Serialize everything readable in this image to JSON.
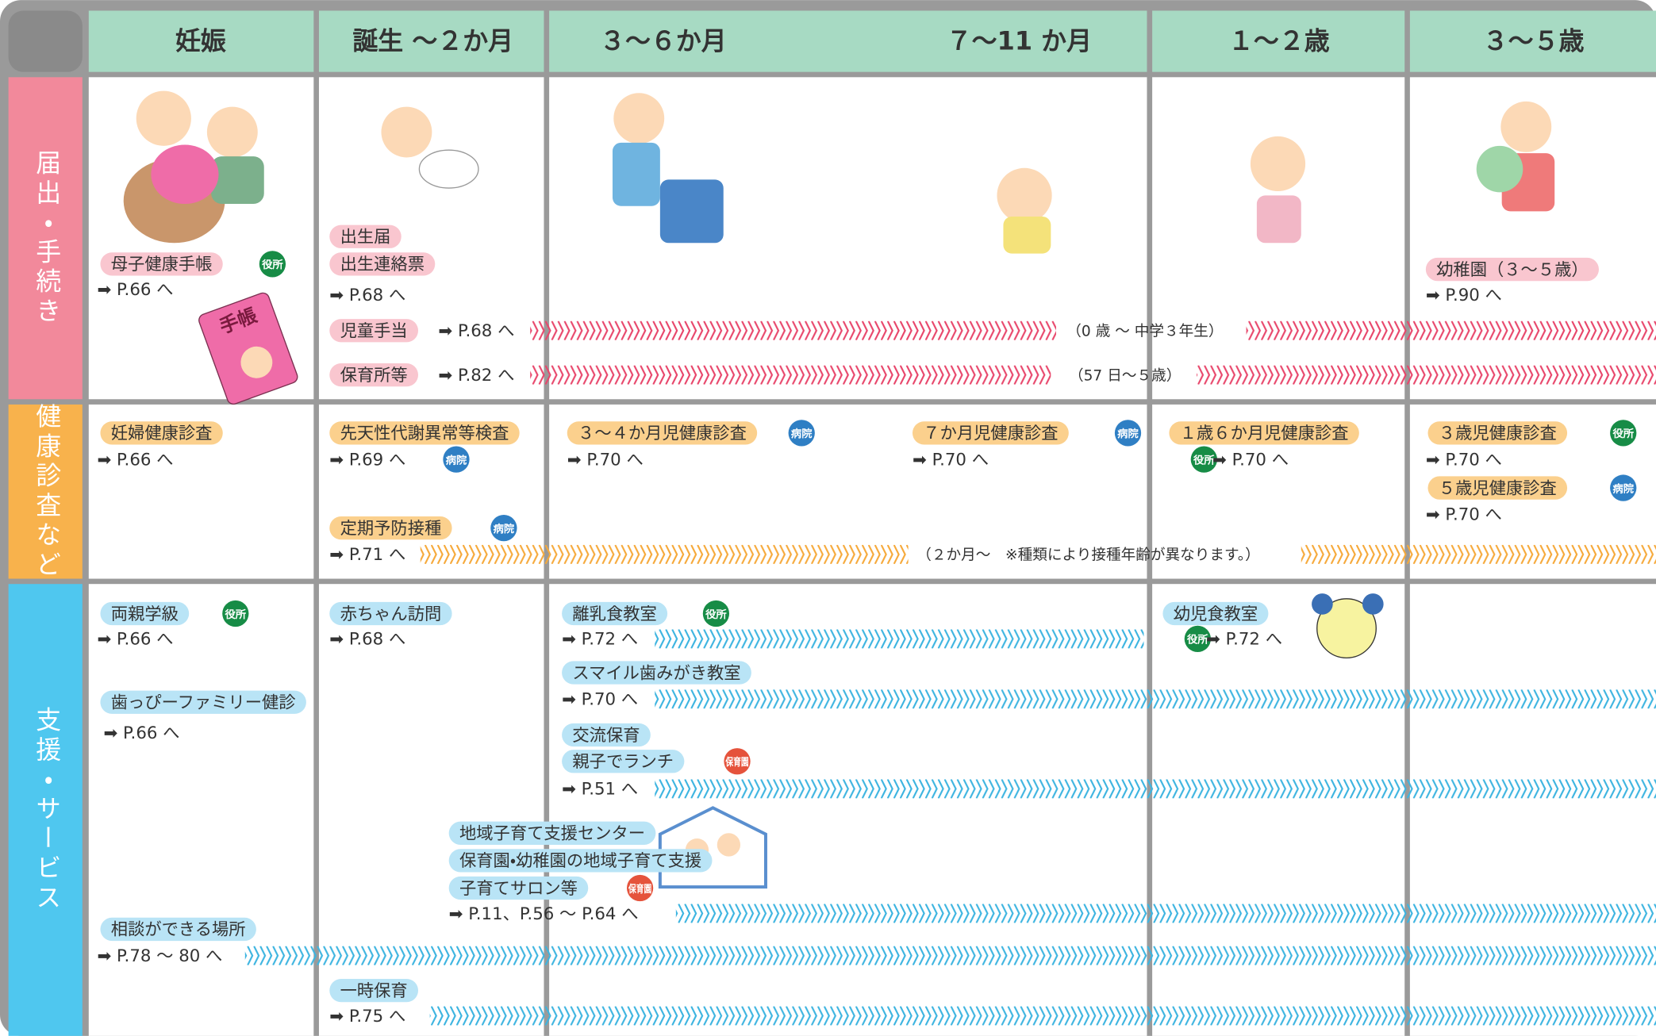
{
  "header": {
    "columns": [
      "妊娠",
      "誕生 〜２か月",
      "３〜６か月",
      "７〜11 か月",
      "１〜２歳",
      "３〜５歳"
    ]
  },
  "sections": [
    {
      "label": "届出・手続き",
      "label_color": "#f2899b",
      "pill_color": "#f9c6cf",
      "band_color": "#e8456a",
      "pills": [
        "母子健康手帳",
        "出生届",
        "出生連絡票",
        "児童手当",
        "保育所等",
        "幼稚園（３〜５歳）"
      ],
      "badges": [
        {
          "text": "役所",
          "color": "#178c46"
        }
      ],
      "refs": [
        "➡ P.66 へ",
        "➡ P.68 へ",
        "➡ P.68 へ",
        "➡ P.82 へ",
        "➡ P.90 へ"
      ],
      "notes": [
        "（0 歳 〜 中学３年生）",
        "（57 日〜５歳）"
      ]
    },
    {
      "label": "健康診査など",
      "label_color": "#f8b24c",
      "pill_color": "#fbd08d",
      "band_color": "#f6a93a",
      "pills": [
        "妊婦健康診査",
        "先天性代謝異常等検査",
        "３〜４か月児健康診査",
        "７か月児健康診査",
        "１歳６か月児健康診査",
        "３歳児健康診査",
        "５歳児健康診査",
        "定期予防接種"
      ],
      "badges": [
        {
          "text": "病院",
          "color": "#2f7fc4"
        },
        {
          "text": "病院",
          "color": "#2f7fc4"
        },
        {
          "text": "病院",
          "color": "#2f7fc4"
        },
        {
          "text": "役所",
          "color": "#178c46"
        },
        {
          "text": "役所",
          "color": "#178c46"
        },
        {
          "text": "病院",
          "color": "#2f7fc4"
        },
        {
          "text": "病院",
          "color": "#2f7fc4"
        }
      ],
      "refs": [
        "➡ P.66 へ",
        "➡ P.69 へ",
        "➡ P.70 へ",
        "➡ P.70 へ",
        "➡ P.70 へ",
        "➡ P.70 へ",
        "➡ P.70 へ",
        "➡ P.71 へ"
      ],
      "notes": [
        "（２か月〜　※種類により接種年齢が異なります。）"
      ]
    },
    {
      "label": "支援・サービス",
      "label_color": "#4fc7ef",
      "pill_color": "#b9e4f6",
      "band_color": "#3cb4e0",
      "pills": [
        "両親学級",
        "歯っぴーファミリー健診",
        "赤ちゃん訪問",
        "離乳食教室",
        "幼児食教室",
        "スマイル歯みがき教室",
        "交流保育",
        "親子でランチ",
        "地域子育て支援センター",
        "保育園・幼稚園の地域子育て支援",
        "子育てサロン等",
        "相談ができる場所",
        "一時保育"
      ],
      "badges": [
        {
          "text": "役所",
          "color": "#178c46"
        },
        {
          "text": "役所",
          "color": "#178c46"
        },
        {
          "text": "役所",
          "color": "#178c46"
        },
        {
          "text": "保育園",
          "color": "#e5533c"
        },
        {
          "text": "保育園",
          "color": "#e5533c"
        }
      ],
      "refs": [
        "➡ P.66 へ",
        "➡ P.66 へ",
        "➡ P.68 へ",
        "➡ P.72 へ",
        "➡ P.72 へ",
        "➡ P.70 へ",
        "➡ P.51 へ",
        "➡ P.11、P.56 〜 P.64 へ",
        "➡ P.78 〜 80 へ",
        "➡ P.75 へ"
      ],
      "notes": []
    }
  ],
  "illustration_text": "手帳"
}
